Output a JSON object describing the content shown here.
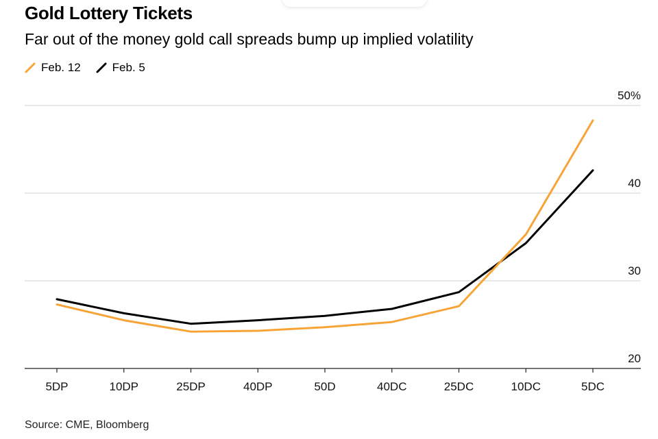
{
  "title": "Gold Lottery Tickets",
  "subtitle": "Far out of the money gold call spreads bump up implied volatility",
  "source": "Source: CME, Bloomberg",
  "chart_data": {
    "type": "line",
    "title": "Gold Lottery Tickets",
    "subtitle": "Far out of the money gold call spreads bump up implied volatility",
    "xlabel": "",
    "ylabel": "",
    "categories": [
      "5DP",
      "10DP",
      "25DP",
      "40DP",
      "50D",
      "40DC",
      "25DC",
      "10DC",
      "5DC"
    ],
    "ylim": [
      20,
      50
    ],
    "yticks": [
      20,
      30,
      40,
      50
    ],
    "ytick_labels": [
      "20",
      "30",
      "40",
      "50%"
    ],
    "y_axis_side": "right",
    "grid": true,
    "legend_placement": "top-left",
    "series": [
      {
        "name": "Feb. 12",
        "color": "#f7a437",
        "values": [
          27.3,
          25.5,
          24.2,
          24.3,
          24.7,
          25.3,
          27.1,
          35.3,
          48.3
        ]
      },
      {
        "name": "Feb. 5",
        "color": "#000000",
        "values": [
          27.9,
          26.3,
          25.1,
          25.5,
          26.0,
          26.8,
          28.7,
          34.3,
          42.6
        ]
      }
    ]
  }
}
